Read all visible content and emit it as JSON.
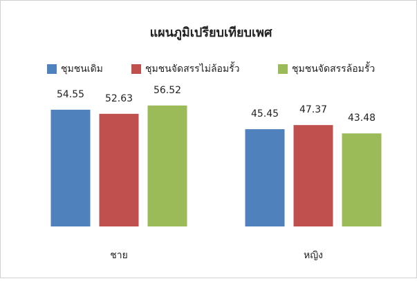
{
  "chart_data": {
    "type": "bar",
    "title": "แผนภูมิเปรียบเทียบเพศ",
    "categories": [
      "ชาย",
      "หญิง"
    ],
    "series": [
      {
        "name": "ชุมชนเดิม",
        "color": "#4f81bd",
        "values": [
          54.55,
          45.45
        ]
      },
      {
        "name": "ชุมชนจัดสรรไม่ล้อมรั้ว",
        "color": "#c0504d",
        "values": [
          52.63,
          47.37
        ]
      },
      {
        "name": "ชุมชนจัดสรรล้อมรั้ว",
        "color": "#9bbb59",
        "values": [
          56.52,
          43.48
        ]
      }
    ],
    "ylim": [
      0,
      60
    ],
    "legend": "top"
  }
}
